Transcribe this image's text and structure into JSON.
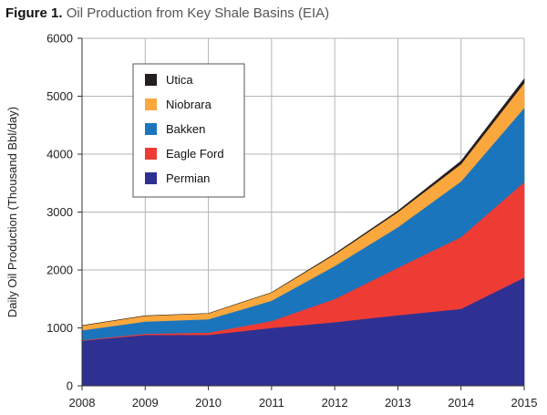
{
  "caption": {
    "lead": "Figure 1.",
    "rest": "Oil Production from Key Shale Basins (EIA)"
  },
  "chart_data": {
    "type": "area",
    "stacked": true,
    "title": "Oil Production from Key Shale Basins (EIA)",
    "xlabel": "",
    "ylabel": "Daily Oil Production (Thousand Bbl/day)",
    "x": [
      2008,
      2009,
      2010,
      2011,
      2012,
      2013,
      2014,
      2015
    ],
    "xticks": [
      "2008",
      "2009",
      "2010",
      "2011",
      "2012",
      "2013",
      "2014",
      "2015"
    ],
    "yticks": [
      "0",
      "1000",
      "2000",
      "3000",
      "4000",
      "5000",
      "6000"
    ],
    "ylim": [
      0,
      6000
    ],
    "xlim": [
      2008,
      2015
    ],
    "grid": true,
    "series": [
      {
        "name": "Permian",
        "color": "#2e3192",
        "values": [
          780,
          880,
          880,
          1000,
          1100,
          1220,
          1330,
          1870
        ]
      },
      {
        "name": "Eagle Ford",
        "color": "#ee3b33",
        "values": [
          10,
          20,
          40,
          120,
          400,
          820,
          1240,
          1650
        ]
      },
      {
        "name": "Bakken",
        "color": "#1b75bc",
        "values": [
          170,
          210,
          230,
          350,
          570,
          700,
          960,
          1280
        ]
      },
      {
        "name": "Niobrara",
        "color": "#faa73d",
        "values": [
          80,
          100,
          100,
          140,
          200,
          260,
          300,
          430
        ]
      },
      {
        "name": "Utica",
        "color": "#231f20",
        "values": [
          0,
          0,
          0,
          0,
          10,
          20,
          50,
          70
        ]
      }
    ],
    "legend": {
      "position": "top-left",
      "order": [
        "Utica",
        "Niobrara",
        "Bakken",
        "Eagle Ford",
        "Permian"
      ]
    }
  }
}
